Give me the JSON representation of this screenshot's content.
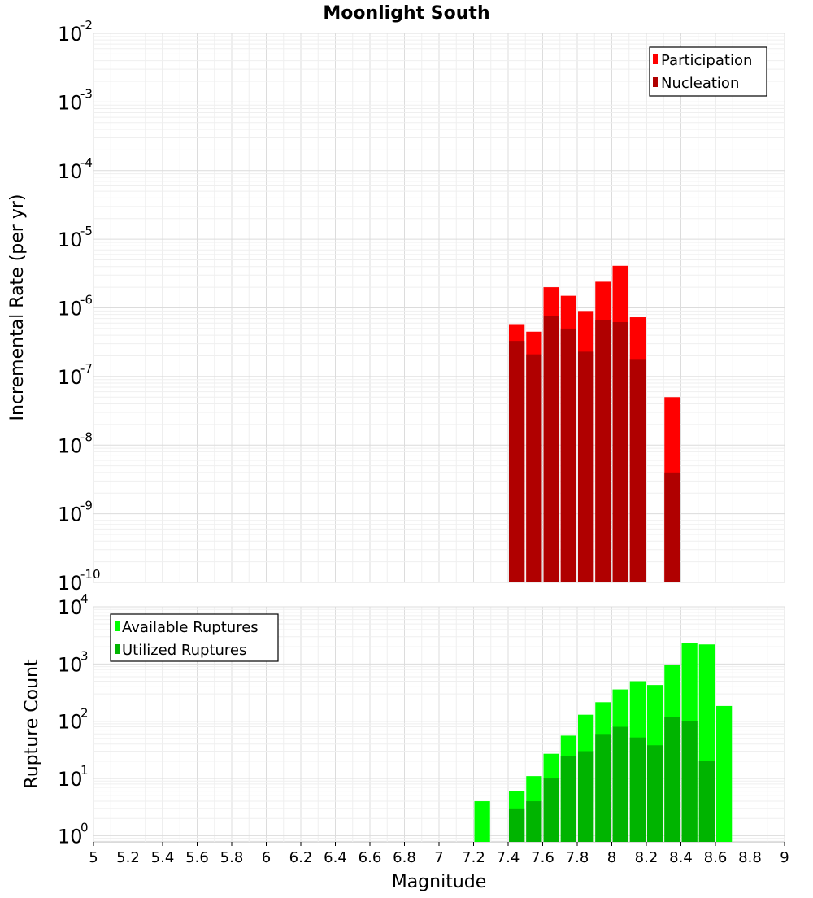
{
  "chart_data": [
    {
      "type": "bar",
      "title": "Moonlight South",
      "xlabel": "Magnitude",
      "ylabel": "Incremental Rate (per yr)",
      "yscale": "log",
      "xlim": [
        5,
        9
      ],
      "ylim": [
        1e-10,
        0.01
      ],
      "bin_width": 0.1,
      "grid": true,
      "legend_position": "top-right",
      "y_ticks": [
        {
          "base": "10",
          "exp": "-10"
        },
        {
          "base": "10",
          "exp": "-9"
        },
        {
          "base": "10",
          "exp": "-8"
        },
        {
          "base": "10",
          "exp": "-7"
        },
        {
          "base": "10",
          "exp": "-6"
        },
        {
          "base": "10",
          "exp": "-5"
        },
        {
          "base": "10",
          "exp": "-4"
        },
        {
          "base": "10",
          "exp": "-3"
        },
        {
          "base": "10",
          "exp": "-2"
        }
      ],
      "series": [
        {
          "name": "Participation",
          "color": "#ff0000",
          "x": [
            7.45,
            7.55,
            7.65,
            7.75,
            7.85,
            7.95,
            8.05,
            8.15,
            8.35
          ],
          "values": [
            5.8e-07,
            4.5e-07,
            2e-06,
            1.5e-06,
            9e-07,
            2.4e-06,
            4.1e-06,
            7.3e-07,
            5e-08
          ]
        },
        {
          "name": "Nucleation",
          "color": "#b00000",
          "x": [
            7.45,
            7.55,
            7.65,
            7.75,
            7.85,
            7.95,
            8.05,
            8.15,
            8.35
          ],
          "values": [
            3.3e-07,
            2.1e-07,
            7.7e-07,
            5e-07,
            2.3e-07,
            6.6e-07,
            6.2e-07,
            1.8e-07,
            4e-09
          ]
        }
      ]
    },
    {
      "type": "bar",
      "title": "",
      "xlabel": "Magnitude",
      "ylabel": "Rupture Count",
      "yscale": "log",
      "xlim": [
        5,
        9
      ],
      "ylim": [
        0.78,
        10000.0
      ],
      "bin_width": 0.1,
      "grid": true,
      "legend_position": "top-left",
      "x_ticks": [
        "5",
        "5.2",
        "5.4",
        "5.6",
        "5.8",
        "6",
        "6.2",
        "6.4",
        "6.6",
        "6.8",
        "7",
        "7.2",
        "7.4",
        "7.6",
        "7.8",
        "8",
        "8.2",
        "8.4",
        "8.6",
        "8.8",
        "9"
      ],
      "y_ticks": [
        {
          "base": "10",
          "exp": "0"
        },
        {
          "base": "10",
          "exp": "1"
        },
        {
          "base": "10",
          "exp": "2"
        },
        {
          "base": "10",
          "exp": "3"
        },
        {
          "base": "10",
          "exp": "4"
        }
      ],
      "series": [
        {
          "name": "Available Ruptures",
          "color": "#00ff00",
          "x": [
            7.25,
            7.45,
            7.55,
            7.65,
            7.75,
            7.85,
            7.95,
            8.05,
            8.15,
            8.25,
            8.35,
            8.45,
            8.55,
            8.65
          ],
          "values": [
            4,
            6,
            11,
            27,
            56,
            130,
            215,
            360,
            500,
            430,
            950,
            2300,
            2200,
            185
          ]
        },
        {
          "name": "Utilized Ruptures",
          "color": "#00b400",
          "x": [
            7.45,
            7.55,
            7.65,
            7.75,
            7.85,
            7.95,
            8.05,
            8.15,
            8.25,
            8.35,
            8.45,
            8.55
          ],
          "values": [
            3,
            4,
            10,
            25,
            30,
            60,
            80,
            52,
            38,
            120,
            100,
            20
          ]
        }
      ]
    }
  ]
}
